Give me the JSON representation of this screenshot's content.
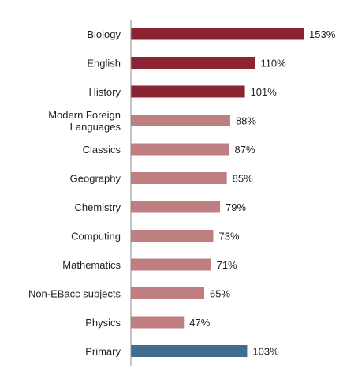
{
  "chart_data": {
    "type": "bar",
    "orientation": "horizontal",
    "categories": [
      "Biology",
      "English",
      "History",
      "Modern Foreign\nLanguages",
      "Classics",
      "Geography",
      "Chemistry",
      "Computing",
      "Mathematics",
      "Non-EBacc subjects",
      "Physics",
      "Primary"
    ],
    "values": [
      153,
      110,
      101,
      88,
      87,
      85,
      79,
      73,
      71,
      65,
      47,
      103
    ],
    "value_labels": [
      "153%",
      "110%",
      "101%",
      "88%",
      "87%",
      "85%",
      "79%",
      "73%",
      "71%",
      "65%",
      "47%",
      "103%"
    ],
    "unit": "%",
    "bar_colors": [
      "#8b2332",
      "#8b2332",
      "#8b2332",
      "#bf7f81",
      "#bf7f81",
      "#bf7f81",
      "#bf7f81",
      "#bf7f81",
      "#bf7f81",
      "#bf7f81",
      "#bf7f81",
      "#3f6e8c"
    ],
    "title": "",
    "xlabel": "",
    "ylabel": "",
    "xlim": [
      0,
      153
    ],
    "grid": false,
    "legend": "none",
    "axis_color": "#8a8a8a"
  }
}
